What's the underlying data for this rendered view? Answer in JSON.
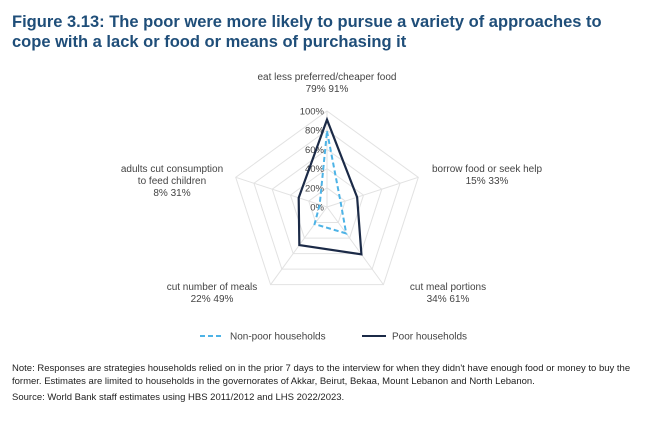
{
  "title": "Figure 3.13: The poor were more likely to pursue a variety of approaches to cope with a lack or food or means of purchasing it",
  "note": "Note: Responses are strategies households relied on in the prior 7 days to the interview for when they didn't have enough food or money to buy the former. Estimates are limited to households in the governorates of Akkar, Beirut, Bekaa, Mount Lebanon and North Lebanon.",
  "source": "Source: World Bank staff estimates using HBS 2011/2012 and LHS 2022/2023.",
  "chart_data": {
    "type": "radar",
    "axes": [
      {
        "label": [
          "eat less preferred/cheaper food"
        ],
        "value_label": "79% 91%"
      },
      {
        "label": [
          "borrow food or seek help"
        ],
        "value_label": "15% 33%"
      },
      {
        "label": [
          "cut meal portions"
        ],
        "value_label": "34% 61%"
      },
      {
        "label": [
          "cut number of meals"
        ],
        "value_label": "22% 49%"
      },
      {
        "label": [
          "adults cut consumption",
          "to feed children"
        ],
        "value_label": "8% 31%"
      }
    ],
    "series": [
      {
        "name": "Non-poor households",
        "values": [
          79,
          15,
          34,
          22,
          8
        ],
        "color": "#4db3e6",
        "dash": true
      },
      {
        "name": "Poor households",
        "values": [
          91,
          33,
          61,
          49,
          31
        ],
        "color": "#1b2a47",
        "dash": false
      }
    ],
    "ticks": [
      "0%",
      "20%",
      "40%",
      "60%",
      "80%",
      "100%"
    ],
    "rlim": [
      0,
      100
    ],
    "grid": true,
    "legend": "bottom"
  }
}
